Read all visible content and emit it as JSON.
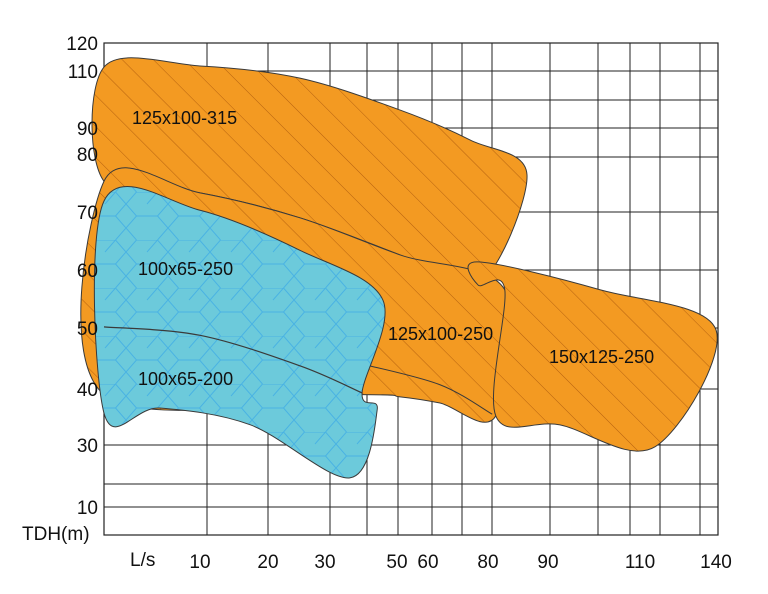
{
  "chart_data": {
    "type": "area",
    "title": "",
    "xlabel": "L/s",
    "ylabel": "TDH(m)",
    "x_ticks": [
      10,
      20,
      30,
      50,
      60,
      80,
      90,
      110,
      140
    ],
    "y_ticks": [
      10,
      30,
      40,
      50,
      60,
      70,
      80,
      90,
      110,
      120
    ],
    "x_scale": "non-uniform",
    "y_scale": "non-uniform",
    "grid": true,
    "colors": {
      "orange": "#f39a22",
      "blue": "#6ccadb",
      "hatch": "#b5610f",
      "hex": "#4ab3e3",
      "outline": "#3a3a3a",
      "grid": "#222222"
    },
    "regions": [
      {
        "name": "125x100-315",
        "fill": "orange",
        "pattern": "hatch",
        "points": [
          [
            0,
            111.4
          ],
          [
            10,
            111.8
          ],
          [
            25.6,
            107.5
          ],
          [
            51,
            96.3
          ],
          [
            74,
            85.4
          ],
          [
            86.5,
            76.4
          ],
          [
            76.7,
            57.4
          ],
          [
            51,
            62.6
          ],
          [
            25.6,
            69
          ],
          [
            10,
            73.3
          ],
          [
            0,
            75.3
          ]
        ]
      },
      {
        "name": "150x125-250",
        "fill": "orange",
        "pattern": "hatch",
        "points": [
          [
            76.7,
            61.4
          ],
          [
            101.3,
            56.6
          ],
          [
            140,
            49.7
          ],
          [
            115.9,
            29.4
          ],
          [
            92.6,
            33.6
          ],
          [
            81.3,
            35.2
          ],
          [
            82.8,
            56.6
          ],
          [
            76.7,
            57.4
          ]
        ]
      },
      {
        "name": "125x100-250",
        "fill": "orange",
        "pattern": "hatch",
        "points": [
          [
            0,
            75.3
          ],
          [
            10,
            73.3
          ],
          [
            25.6,
            69
          ],
          [
            51,
            62.6
          ],
          [
            82.8,
            56.6
          ],
          [
            81.3,
            35.2
          ],
          [
            64,
            37.5
          ],
          [
            51,
            38.6
          ],
          [
            40.3,
            39
          ],
          [
            0,
            39
          ]
        ],
        "inner_curve": [
          [
            40.3,
            44.1
          ],
          [
            64,
            40.7
          ],
          [
            80.7,
            35.5
          ]
        ]
      },
      {
        "name": "100x65-250",
        "fill": "blue",
        "pattern": "hexagon",
        "points": [
          [
            0,
            71.9
          ],
          [
            10,
            70.3
          ],
          [
            25.6,
            63.4
          ],
          [
            46.1,
            54.8
          ],
          [
            40.3,
            39.3
          ],
          [
            44.5,
            36.3
          ],
          [
            36.9,
            19.4
          ],
          [
            17.4,
            33.6
          ],
          [
            5.8,
            36.6
          ],
          [
            0,
            35.7
          ]
        ]
      },
      {
        "name": "100x65-200",
        "fill": "blue",
        "pattern": "hexagon",
        "boundary_curve": [
          [
            0,
            50.2
          ],
          [
            10,
            48.8
          ],
          [
            25.6,
            43.8
          ],
          [
            40.3,
            39.3
          ]
        ]
      }
    ]
  }
}
